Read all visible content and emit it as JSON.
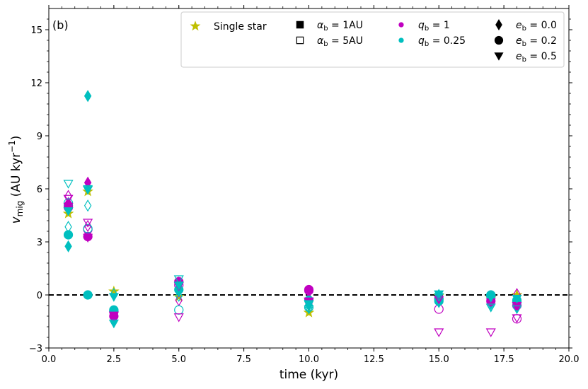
{
  "chart_data": {
    "type": "scatter",
    "panel_label": "(b)",
    "xlabel": "time (kyr)",
    "ylabel": {
      "var": "v",
      "sub": "mig",
      "rest": " (AU kyr",
      "sup": "−1",
      "close": ")"
    },
    "xlim": [
      0,
      20
    ],
    "ylim": [
      -3,
      16.2
    ],
    "xticks": [
      0,
      2.5,
      5,
      7.5,
      10,
      12.5,
      15,
      17.5,
      20
    ],
    "xtick_labels": [
      "0.0",
      "2.5",
      "5.0",
      "7.5",
      "10.0",
      "12.5",
      "15.0",
      "17.5",
      "20.0"
    ],
    "yticks": [
      -3,
      0,
      3,
      6,
      9,
      12,
      15
    ],
    "ytick_labels": [
      "−3",
      "0",
      "3",
      "6",
      "9",
      "12",
      "15"
    ],
    "grid": false,
    "reference_line": {
      "y": 0,
      "style": "dashed"
    },
    "colors": {
      "q1": "#c000c0",
      "q025": "#00bfbf",
      "single": "#bfbf00",
      "legend_box": "#cccccc"
    },
    "legend": {
      "placement": "top-right",
      "entries": [
        {
          "label": "Single star",
          "marker": "star",
          "fill": "single"
        },
        {
          "label": "α",
          "sub": "b",
          "rest": " = 1AU",
          "marker": "square",
          "fill": "filled"
        },
        {
          "label": "α",
          "sub": "b",
          "rest": " = 5AU",
          "marker": "square",
          "fill": "open"
        },
        {
          "label": "q",
          "sub": "b",
          "rest": " = 1",
          "marker": "dot",
          "fill": "q1"
        },
        {
          "label": "q",
          "sub": "b",
          "rest": " = 0.25",
          "marker": "dot",
          "fill": "q025"
        },
        {
          "label": "e",
          "sub": "b",
          "rest": " = 0.0",
          "marker": "diamond",
          "fill": "filled"
        },
        {
          "label": "e",
          "sub": "b",
          "rest": " = 0.2",
          "marker": "circle",
          "fill": "filled"
        },
        {
          "label": "e",
          "sub": "b",
          "rest": " = 0.5",
          "marker": "triangle",
          "fill": "filled"
        }
      ]
    },
    "series": [
      {
        "name": "Single star",
        "marker": "star",
        "color": "single",
        "filled": true,
        "points": [
          [
            0.75,
            4.6
          ],
          [
            1.5,
            5.85
          ],
          [
            2.5,
            0.2
          ],
          [
            5,
            -0.1
          ],
          [
            10,
            -1.0
          ],
          [
            15,
            -0.05
          ],
          [
            17,
            -0.2
          ],
          [
            18,
            0.0
          ]
        ]
      },
      {
        "name": "",
        "marker": "diamond",
        "color": "q1",
        "filled": true,
        "points": [
          [
            1.5,
            6.35
          ],
          [
            0.75,
            5.2
          ],
          [
            10,
            -0.2
          ],
          [
            5,
            0.7
          ],
          [
            18,
            -0.5
          ]
        ]
      },
      {
        "name": "",
        "marker": "diamond",
        "color": "q1",
        "filled": false,
        "points": [
          [
            0.75,
            5.6
          ],
          [
            1.5,
            3.9
          ],
          [
            5,
            -0.3
          ],
          [
            10,
            -0.5
          ],
          [
            15,
            -0.1
          ],
          [
            17,
            -0.3
          ],
          [
            18,
            0.05
          ]
        ]
      },
      {
        "name": "",
        "marker": "diamond",
        "color": "q025",
        "filled": true,
        "points": [
          [
            0.75,
            2.75
          ],
          [
            1.5,
            11.25
          ],
          [
            2.5,
            -1.5
          ],
          [
            5,
            0.2
          ],
          [
            10,
            -0.6
          ],
          [
            15,
            -0.4
          ],
          [
            17,
            -0.5
          ],
          [
            18,
            -0.7
          ]
        ]
      },
      {
        "name": "",
        "marker": "diamond",
        "color": "q025",
        "filled": false,
        "points": [
          [
            0.75,
            3.85
          ],
          [
            1.5,
            5.05
          ],
          [
            2.5,
            0.05
          ],
          [
            5,
            -0.05
          ],
          [
            10,
            -0.75
          ],
          [
            15,
            0.0
          ],
          [
            17,
            -0.6
          ],
          [
            18,
            -0.5
          ]
        ]
      },
      {
        "name": "",
        "marker": "circle",
        "color": "q1",
        "filled": true,
        "points": [
          [
            0.75,
            4.95
          ],
          [
            1.5,
            3.3
          ],
          [
            2.5,
            -1.2
          ],
          [
            5,
            0.75
          ],
          [
            10,
            0.3
          ],
          [
            15,
            -0.2
          ],
          [
            17,
            -0.35
          ],
          [
            18,
            -0.6
          ]
        ]
      },
      {
        "name": "",
        "marker": "circle",
        "color": "q1",
        "filled": false,
        "points": [
          [
            0.75,
            5.05
          ],
          [
            1.5,
            3.7
          ],
          [
            2.5,
            -0.95
          ],
          [
            5,
            0.55
          ],
          [
            10,
            0.25
          ],
          [
            15,
            -0.8
          ],
          [
            17,
            -0.05
          ],
          [
            18,
            -1.35
          ]
        ]
      },
      {
        "name": "",
        "marker": "circle",
        "color": "q025",
        "filled": true,
        "points": [
          [
            0.75,
            3.4
          ],
          [
            1.5,
            0.0
          ],
          [
            2.5,
            -0.85
          ],
          [
            5,
            0.3
          ],
          [
            10,
            -0.3
          ],
          [
            15,
            -0.35
          ],
          [
            17,
            -0.05
          ],
          [
            18,
            -0.3
          ]
        ]
      },
      {
        "name": "",
        "marker": "circle",
        "color": "q025",
        "filled": false,
        "points": [
          [
            0.75,
            5.2
          ],
          [
            1.5,
            3.75
          ],
          [
            2.5,
            -0.9
          ],
          [
            5,
            -0.85
          ],
          [
            10,
            -0.7
          ],
          [
            15,
            -0.25
          ],
          [
            17,
            0.0
          ],
          [
            18,
            -0.4
          ]
        ]
      },
      {
        "name": "",
        "marker": "triangle",
        "color": "q1",
        "filled": true,
        "points": [
          [
            0.75,
            5.0
          ],
          [
            1.5,
            3.25
          ],
          [
            2.5,
            -1.15
          ],
          [
            5,
            0.5
          ],
          [
            10,
            -0.35
          ],
          [
            15,
            -0.25
          ],
          [
            17,
            -0.4
          ],
          [
            18,
            -0.6
          ]
        ]
      },
      {
        "name": "",
        "marker": "triangle",
        "color": "q1",
        "filled": false,
        "points": [
          [
            0.75,
            5.45
          ],
          [
            1.5,
            4.1
          ],
          [
            5,
            -1.25
          ],
          [
            10,
            -0.4
          ],
          [
            15,
            -2.1
          ],
          [
            17,
            -2.1
          ],
          [
            18,
            -1.3
          ]
        ]
      },
      {
        "name": "",
        "marker": "triangle",
        "color": "q025",
        "filled": true,
        "points": [
          [
            0.75,
            4.75
          ],
          [
            1.5,
            5.95
          ],
          [
            2.5,
            -0.1
          ],
          [
            5,
            0.55
          ],
          [
            10,
            -0.5
          ],
          [
            15,
            0.05
          ],
          [
            17,
            -0.15
          ],
          [
            18,
            -0.2
          ]
        ]
      },
      {
        "name": "",
        "marker": "triangle",
        "color": "q025",
        "filled": false,
        "points": [
          [
            0.75,
            6.3
          ],
          [
            1.5,
            6.0
          ],
          [
            2.5,
            -1.6
          ],
          [
            5,
            0.9
          ],
          [
            10,
            -0.8
          ],
          [
            15,
            -0.1
          ],
          [
            17,
            -0.7
          ],
          [
            18,
            -0.8
          ]
        ]
      }
    ]
  }
}
